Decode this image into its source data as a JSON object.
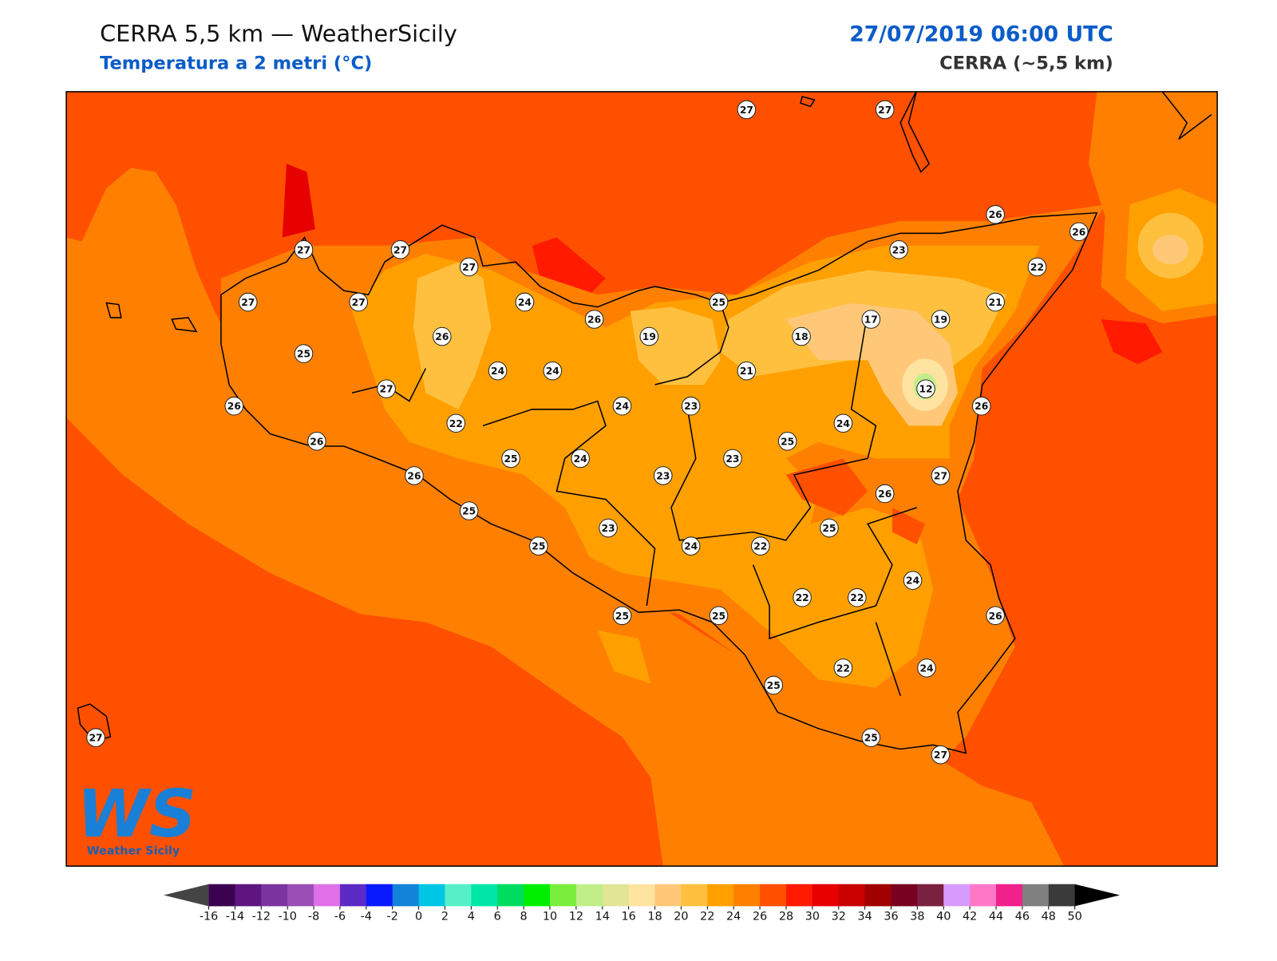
{
  "header": {
    "title": "CERRA 5,5 km — WeatherSicily",
    "subtitle": "Temperatura a 2 metri (°C)",
    "date": "27/07/2019 06:00 UTC",
    "model": "CERRA (~5,5 km)"
  },
  "stations": [
    27,
    27,
    26,
    26,
    27,
    27,
    27,
    23,
    22,
    27,
    27,
    24,
    26,
    25,
    21,
    17,
    19,
    26,
    19,
    18,
    25,
    24,
    24,
    21,
    12,
    27,
    26,
    24,
    23,
    26,
    22,
    24,
    26,
    25,
    25,
    24,
    23,
    23,
    26,
    27,
    26,
    25,
    25,
    23,
    25,
    24,
    22,
    24,
    22,
    22,
    25,
    25,
    26,
    22,
    24,
    25,
    25,
    27,
    27
  ],
  "colorbar": {
    "ticks": [
      -16,
      -14,
      -12,
      -10,
      -8,
      -6,
      -4,
      -2,
      0,
      2,
      4,
      6,
      8,
      10,
      12,
      14,
      16,
      18,
      20,
      22,
      24,
      26,
      28,
      30,
      32,
      34,
      36,
      38,
      40,
      42,
      44,
      46,
      48,
      50
    ],
    "colors": [
      "#3b0050",
      "#5e1580",
      "#7c34a0",
      "#9b4fb6",
      "#df70e8",
      "#5c2ac4",
      "#0a1aff",
      "#1283d8",
      "#00c6e6",
      "#55f0c8",
      "#00e6a6",
      "#00dc60",
      "#00ee00",
      "#7aee3c",
      "#c2ee8a",
      "#e0e696",
      "#ffe3a0",
      "#ffc878",
      "#ffc040",
      "#ffa000",
      "#ff8000",
      "#ff5000",
      "#ff1a00",
      "#e60000",
      "#c80000",
      "#a00000",
      "#780020",
      "#7a2040",
      "#d89cff",
      "#ff78c8",
      "#f0208c",
      "#808080",
      "#3a3a3a"
    ],
    "under_color": "#444444",
    "over_color": "#000000"
  },
  "logo": {
    "mark": "WS",
    "text": "Weather Sicily"
  }
}
